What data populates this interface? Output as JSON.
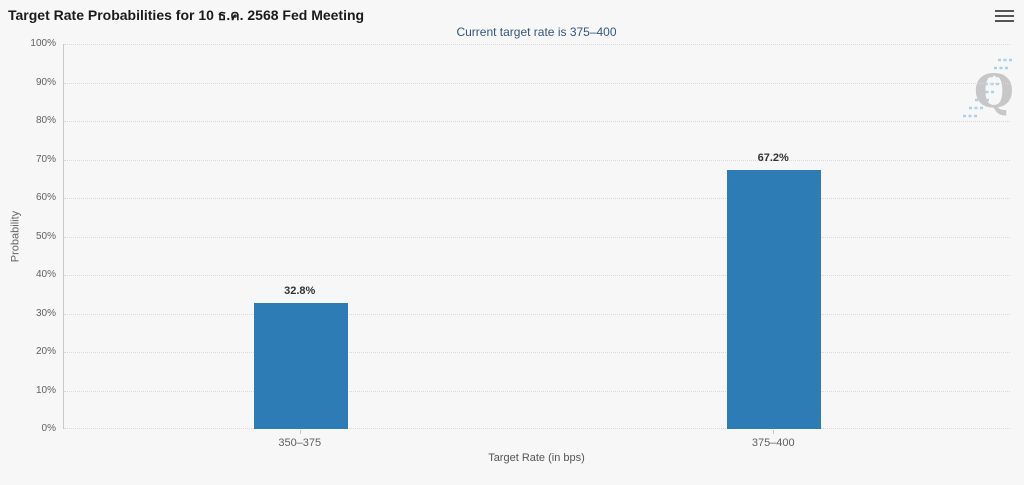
{
  "chart_data": {
    "type": "bar",
    "title": "Target Rate Probabilities for 10 ธ.ค. 2568 Fed Meeting",
    "subtitle": "Current target rate is 375–400",
    "categories": [
      "350–375",
      "375–400"
    ],
    "values": [
      32.8,
      67.2
    ],
    "value_labels": [
      "32.8%",
      "67.2%"
    ],
    "xlabel": "Target Rate (in bps)",
    "ylabel": "Probability",
    "ylim": [
      0,
      100
    ],
    "y_ticks": [
      0,
      10,
      20,
      30,
      40,
      50,
      60,
      70,
      80,
      90,
      100
    ],
    "y_tick_suffix": "%",
    "grid": "dotted-horizontal",
    "legend": "none",
    "bar_color": "#2e7cb5"
  },
  "watermark": {
    "letter": "Q"
  },
  "icons": {
    "menu": "hamburger-menu-icon",
    "watermark": "q-logo-with-swoosh"
  },
  "colors": {
    "background": "#f7f7f7",
    "title_text": "#1b1b1b",
    "subtitle_text": "#33567e",
    "bar": "#2e7cb5",
    "axis_text": "#606060",
    "data_label": "#333333",
    "gridline": "#d8d8d8",
    "axis_line": "#c9c9c9",
    "watermark_q": "#c7c7c7",
    "watermark_swoosh": "#a9d1e8",
    "menu_icon": "#555555"
  }
}
